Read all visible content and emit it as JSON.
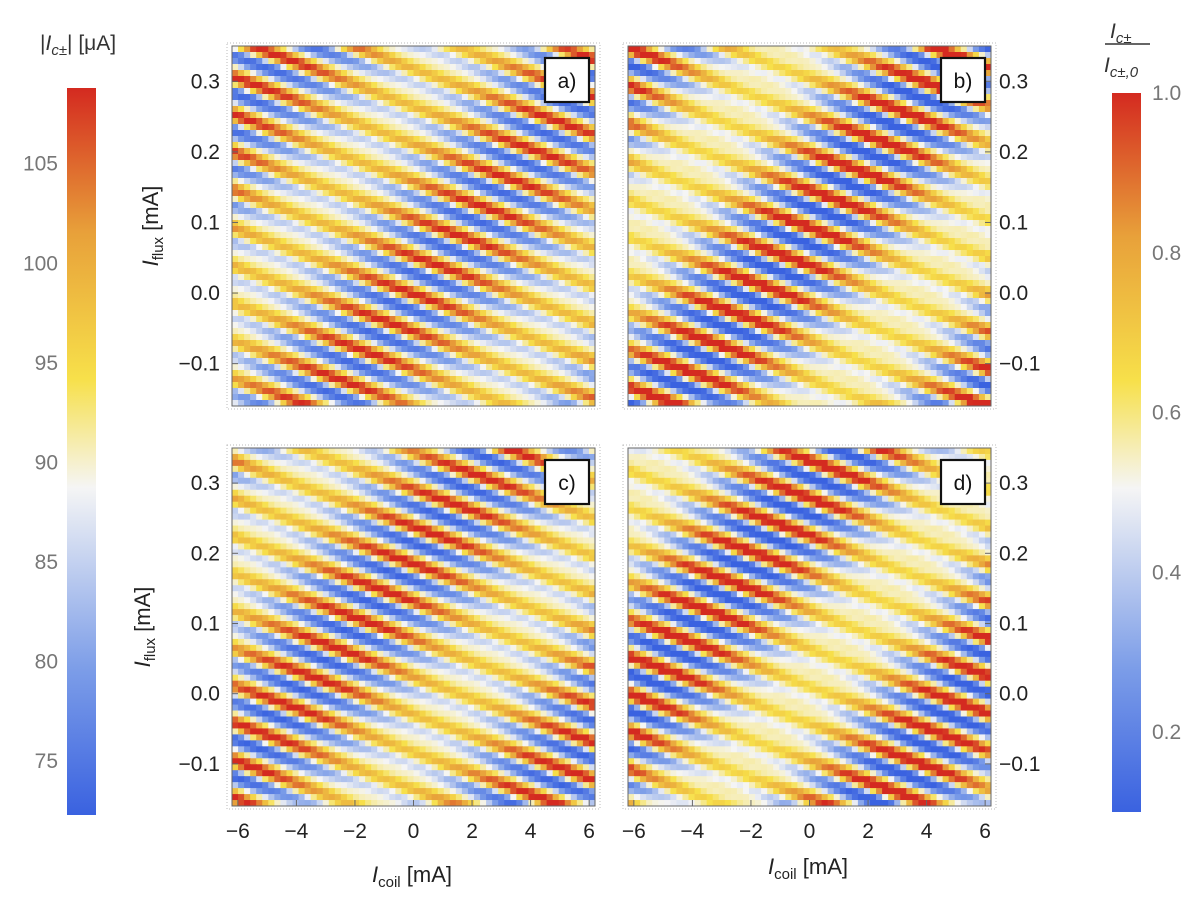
{
  "chart_data": {
    "type": "heatmap",
    "x_range": [
      -6.2,
      6.2
    ],
    "y_range": [
      -0.16,
      0.35
    ],
    "x_ticks": [
      -6,
      -4,
      -2,
      0,
      2,
      4,
      6
    ],
    "x_tick_labels": [
      "−6",
      "−4",
      "−2",
      "0",
      "2",
      "4",
      "6"
    ],
    "y_ticks": [
      -0.1,
      0.0,
      0.1,
      0.2,
      0.3
    ],
    "y_tick_labels": [
      "−0.1",
      "0.0",
      "0.1",
      "0.2",
      "0.3"
    ],
    "xlabel": {
      "main": "I",
      "sub": "coil",
      "unit": " [mA]"
    },
    "ylabel": {
      "main": "I",
      "sub": "flux",
      "unit": " [mA]"
    },
    "panels": [
      {
        "label": "a)"
      },
      {
        "label": "b)"
      },
      {
        "label": "c)"
      },
      {
        "label": "d)"
      }
    ],
    "colorbar_left": {
      "title_pre": "|",
      "title_main": "I",
      "title_sub": "c±",
      "title_post": "| [μA]",
      "range": [
        72.3,
        108.8
      ],
      "ticks": [
        75,
        80,
        85,
        90,
        95,
        100,
        105
      ],
      "tick_labels": [
        "75",
        "80",
        "85",
        "90",
        "95",
        "100",
        "105"
      ]
    },
    "colorbar_right": {
      "num_main": "I",
      "num_sub": "c±",
      "den_main": "I",
      "den_sub": "c±,0",
      "range": [
        0.1,
        1.0
      ],
      "ticks": [
        0.2,
        0.4,
        0.6,
        0.8,
        1.0
      ],
      "tick_labels": [
        "0.2",
        "0.4",
        "0.6",
        "0.8",
        "1.0"
      ]
    },
    "colormap": [
      "#3a62e0",
      "#7c9de8",
      "#f5f5f5",
      "#f7e04a",
      "#e8a13a",
      "#d42a20"
    ]
  }
}
